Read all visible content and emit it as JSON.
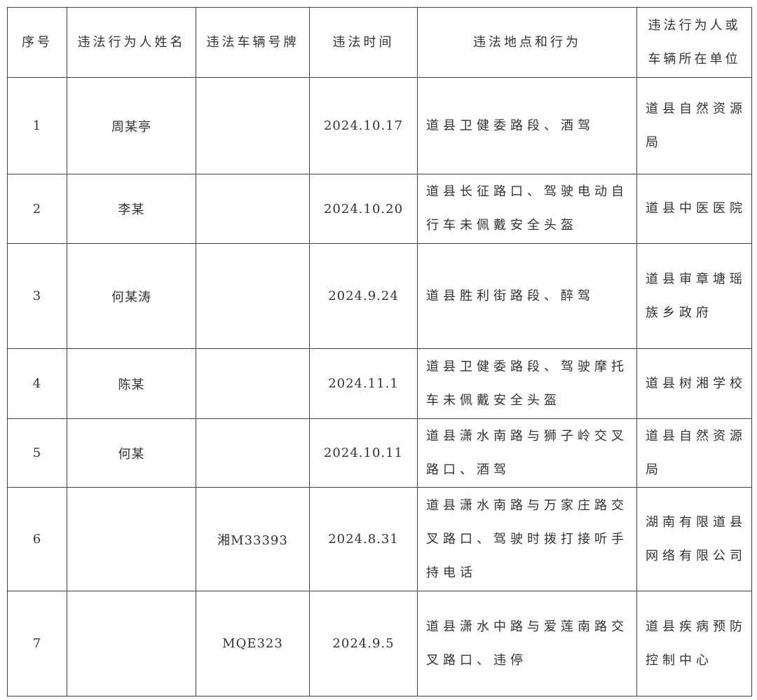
{
  "table": {
    "headers": [
      "序号",
      "违法行为人姓名",
      "违法车辆号牌",
      "违法时间",
      "违法地点和行为",
      "违法行为人或车辆所在单位"
    ],
    "rows": [
      {
        "no": "1",
        "name": "周某亭",
        "plate": "",
        "time": "2024.10.17",
        "place": "道县卫健委路段、酒驾",
        "unit": "道县自然资源局"
      },
      {
        "no": "2",
        "name": "李某",
        "plate": "",
        "time": "2024.10.20",
        "place": "道县长征路口、驾驶电动自行车未佩戴安全头盔",
        "unit": "道县中医医院"
      },
      {
        "no": "3",
        "name": "何某涛",
        "plate": "",
        "time": "2024.9.24",
        "place": "道县胜利街路段、醉驾",
        "unit": "道县审章塘瑶族乡政府"
      },
      {
        "no": "4",
        "name": "陈某",
        "plate": "",
        "time": "2024.11.1",
        "place": "道县卫健委路段、驾驶摩托车未佩戴安全头盔",
        "unit": "道县树湘学校"
      },
      {
        "no": "5",
        "name": "何某",
        "plate": "",
        "time": "2024.10.11",
        "place": "道县潇水南路与狮子岭交叉路口、酒驾",
        "unit": "道县自然资源局"
      },
      {
        "no": "6",
        "name": "",
        "plate": "湘M33393",
        "time": "2024.8.31",
        "place": "道县潇水南路与万家庄路交叉路口、驾驶时拨打接听手持电话",
        "unit": "湖南有限道县网络有限公司"
      },
      {
        "no": "7",
        "name": "",
        "plate": "MQE323",
        "time": "2024.9.5",
        "place": "道县潇水中路与爱莲南路交叉路口、违停",
        "unit": "道县疾病预防控制中心"
      }
    ]
  }
}
